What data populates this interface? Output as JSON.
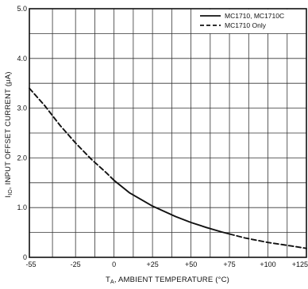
{
  "chart_data": {
    "type": "line",
    "xlabel": "T",
    "xlabel_sub": "A",
    "xlabel_rest": ", AMBIENT TEMPERATURE (°C)",
    "ylabel": "I",
    "ylabel_sub": "IO",
    "ylabel_rest": ", INPUT OFFSET CURRENT (μA)",
    "xlim": [
      -55,
      125
    ],
    "ylim": [
      0,
      5.0
    ],
    "x_ticks": [
      -55,
      -25,
      0,
      25,
      50,
      75,
      100,
      125
    ],
    "x_tick_labels": [
      "-55",
      "-25",
      "0",
      "+25",
      "+50",
      "+75",
      "+100",
      "+125"
    ],
    "y_ticks": [
      0,
      1.0,
      2.0,
      3.0,
      4.0,
      5.0
    ],
    "y_tick_labels": [
      "0",
      "1.0",
      "2.0",
      "3.0",
      "4.0",
      "5.0"
    ],
    "x_grid_lines": [
      -55,
      -40,
      -25,
      -12.5,
      0,
      12.5,
      25,
      37.5,
      50,
      62.5,
      75,
      87.5,
      100,
      112.5,
      125
    ],
    "y_grid_lines": [
      0,
      0.5,
      1.0,
      1.5,
      2.0,
      2.5,
      3.0,
      3.5,
      4.0,
      4.5,
      5.0
    ],
    "grid": true,
    "legend_position": "top-right",
    "series": [
      {
        "name": "MC1710, MC1710C",
        "style": "solid",
        "x": [
          0,
          10,
          25,
          40,
          50,
          60,
          70,
          75
        ],
        "y": [
          1.55,
          1.3,
          1.03,
          0.82,
          0.7,
          0.6,
          0.51,
          0.47
        ]
      },
      {
        "name": "MC1710 Only",
        "style": "dashed",
        "x": [
          -55,
          -45,
          -35,
          -25,
          -15,
          -5,
          0,
          75,
          85,
          100,
          115,
          125
        ],
        "y": [
          3.4,
          3.05,
          2.65,
          2.3,
          1.98,
          1.7,
          1.55,
          0.47,
          0.39,
          0.3,
          0.23,
          0.18
        ]
      }
    ]
  }
}
